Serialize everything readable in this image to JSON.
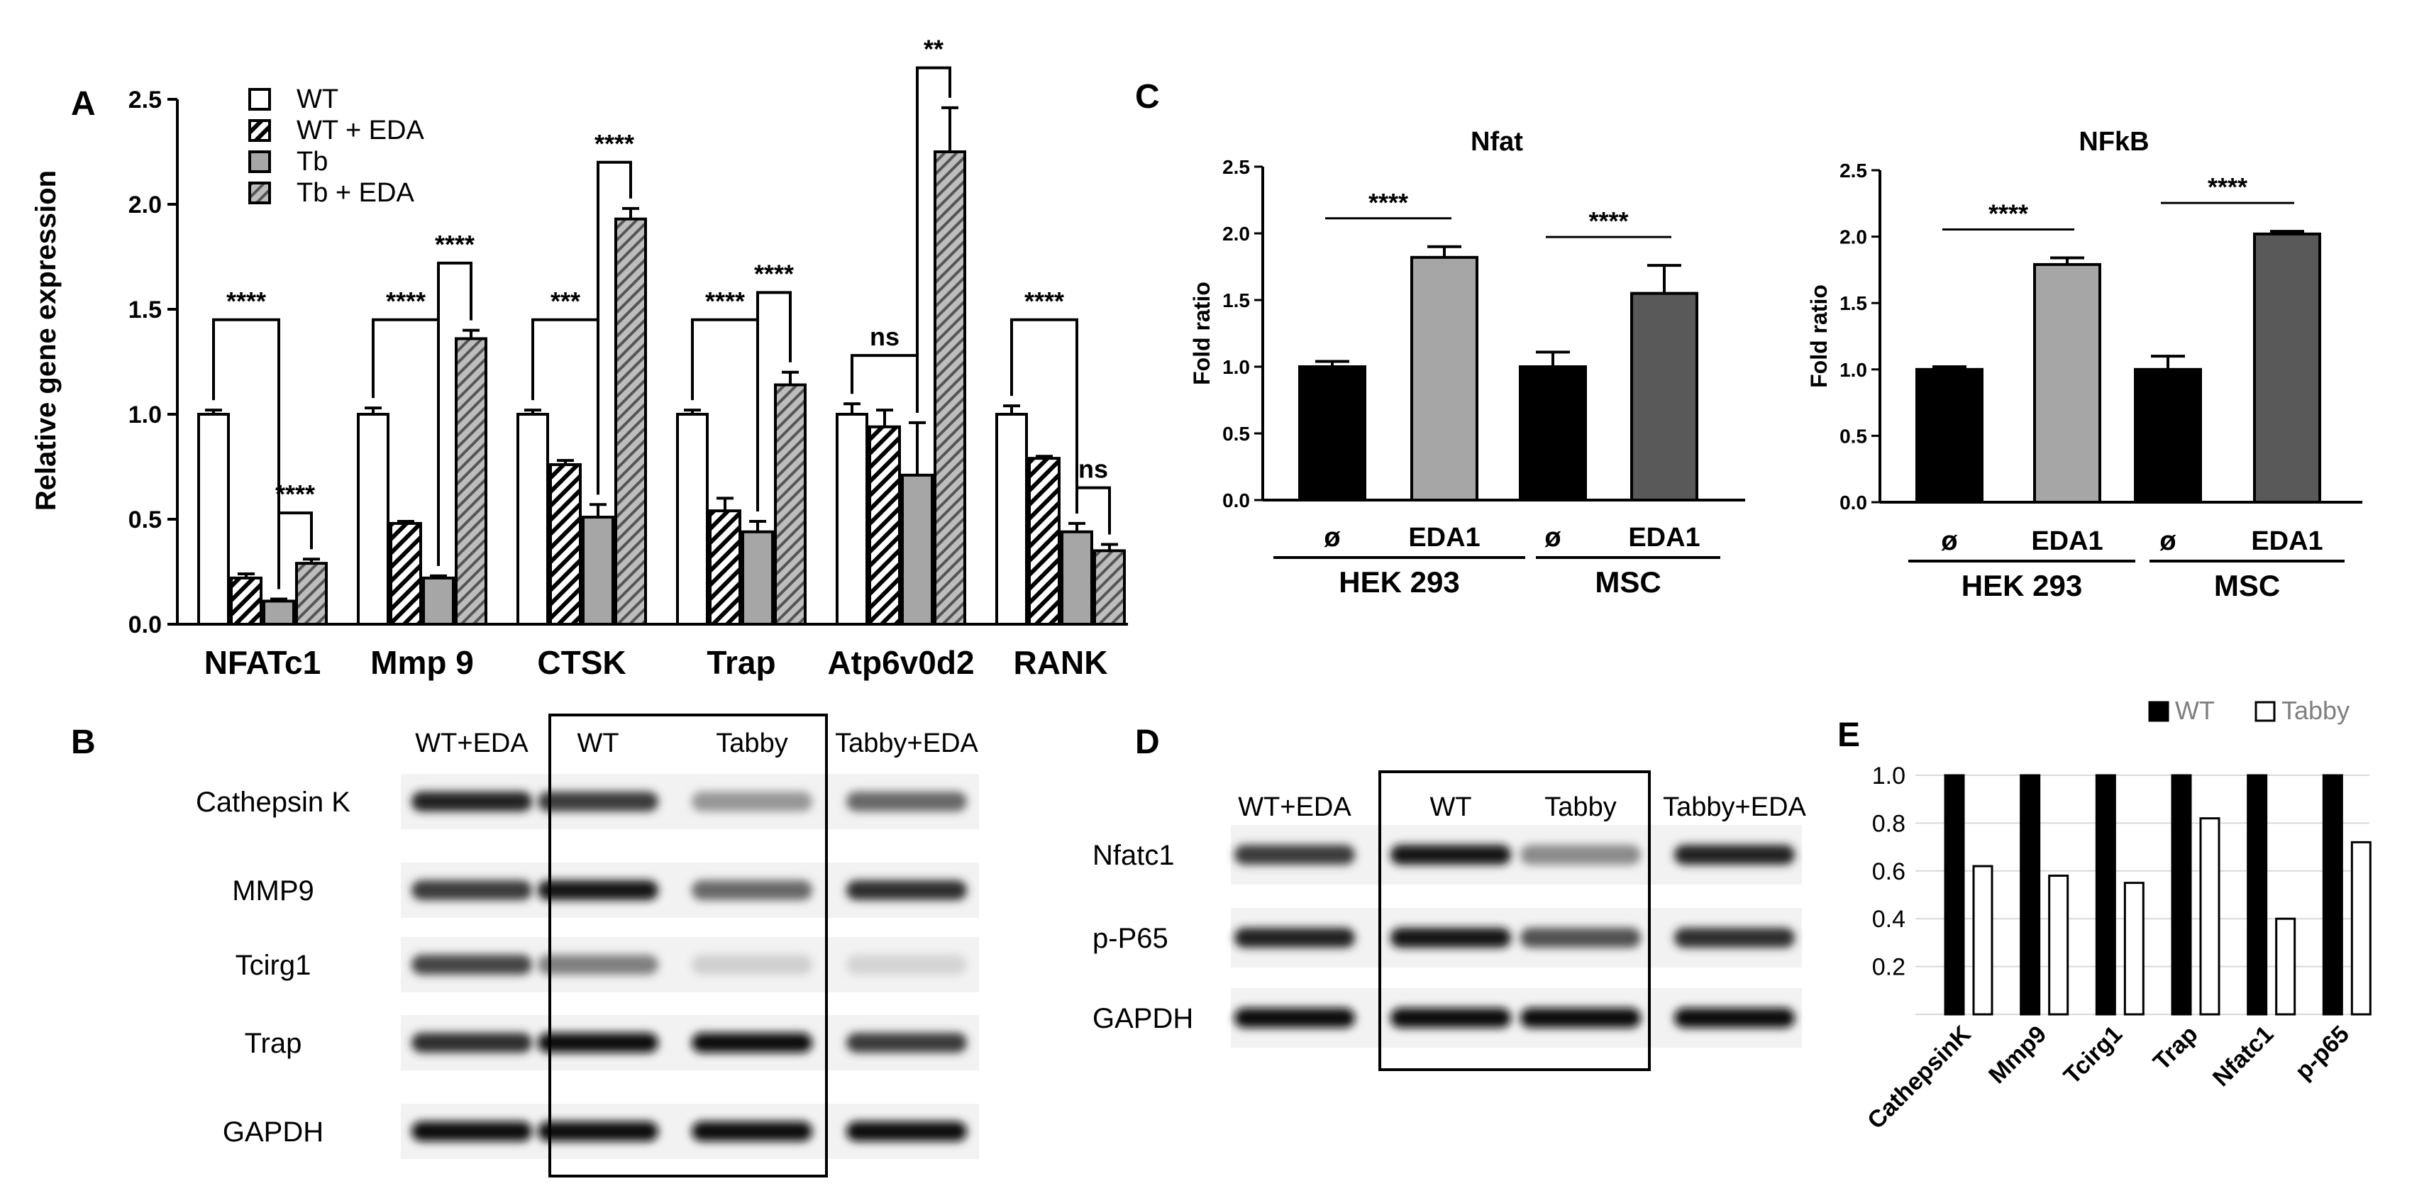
{
  "panelA": {
    "letter": "A",
    "type": "bar",
    "ylabel": "Relative gene expression",
    "ylim": [
      0,
      2.5
    ],
    "yticks": [
      "0.0",
      "0.5",
      "1.0",
      "1.5",
      "2.0",
      "2.5"
    ],
    "categories": [
      "NFATc1",
      "Mmp 9",
      "CTSK",
      "Trap",
      "Atp6v0d2",
      "RANK"
    ],
    "legend": [
      "WT",
      "WT + EDA",
      "Tb",
      "Tb + EDA"
    ],
    "series": [
      {
        "name": "WT",
        "values": [
          1.0,
          1.0,
          1.0,
          1.0,
          1.0,
          1.0
        ],
        "err": [
          0.02,
          0.03,
          0.02,
          0.02,
          0.05,
          0.04
        ]
      },
      {
        "name": "WT + EDA",
        "values": [
          0.22,
          0.48,
          0.76,
          0.54,
          0.94,
          0.79
        ],
        "err": [
          0.02,
          0.01,
          0.02,
          0.06,
          0.08,
          0.01
        ]
      },
      {
        "name": "Tb",
        "values": [
          0.11,
          0.22,
          0.51,
          0.44,
          0.71,
          0.44
        ],
        "err": [
          0.01,
          0.01,
          0.06,
          0.05,
          0.25,
          0.04
        ]
      },
      {
        "name": "Tb + EDA",
        "values": [
          0.29,
          1.36,
          1.93,
          1.14,
          2.25,
          0.35
        ],
        "err": [
          0.02,
          0.04,
          0.05,
          0.06,
          0.21,
          0.03
        ]
      }
    ],
    "significance": [
      {
        "label": "****",
        "group": 0,
        "from": 0,
        "to": 2,
        "y": 1.45
      },
      {
        "label": "****",
        "group": 0,
        "from": 2,
        "to": 3,
        "y": 0.53
      },
      {
        "label": "****",
        "group": 1,
        "from": 0,
        "to": 2,
        "y": 1.45
      },
      {
        "label": "****",
        "group": 1,
        "from": 2,
        "to": 3,
        "y": 1.72
      },
      {
        "label": "***",
        "group": 2,
        "from": 0,
        "to": 2,
        "y": 1.45
      },
      {
        "label": "****",
        "group": 2,
        "from": 2,
        "to": 3,
        "y": 2.2
      },
      {
        "label": "****",
        "group": 3,
        "from": 0,
        "to": 2,
        "y": 1.45
      },
      {
        "label": "****",
        "group": 3,
        "from": 2,
        "to": 3,
        "y": 1.58
      },
      {
        "label": "ns",
        "group": 4,
        "from": 0,
        "to": 2,
        "y": 1.28
      },
      {
        "label": "**",
        "group": 4,
        "from": 2,
        "to": 3,
        "y": 2.65
      },
      {
        "label": "****",
        "group": 5,
        "from": 0,
        "to": 2,
        "y": 1.45
      },
      {
        "label": "ns",
        "group": 5,
        "from": 2,
        "to": 3,
        "y": 0.65
      }
    ]
  },
  "panelB": {
    "letter": "B",
    "lanes": [
      "WT+EDA",
      "WT",
      "Tabby",
      "Tabby+EDA"
    ],
    "rows": [
      {
        "label": "Cathepsin K",
        "bands": [
          0.85,
          0.75,
          0.35,
          0.55
        ]
      },
      {
        "label": "MMP9",
        "bands": [
          0.75,
          0.9,
          0.55,
          0.8
        ]
      },
      {
        "label": "Tcirg1",
        "bands": [
          0.7,
          0.45,
          0.1,
          0.08
        ]
      },
      {
        "label": "Trap",
        "bands": [
          0.8,
          0.95,
          0.95,
          0.75
        ]
      },
      {
        "label": "GAPDH",
        "bands": [
          0.95,
          0.95,
          0.95,
          0.95
        ]
      }
    ]
  },
  "panelC": {
    "letter": "C",
    "charts": [
      {
        "type": "bar",
        "title": "Nfat",
        "ylabel": "Fold ratio",
        "ylim": [
          0,
          2.5
        ],
        "yticks": [
          "0.0",
          "0.5",
          "1.0",
          "1.5",
          "2.0",
          "2.5"
        ],
        "categories": [
          "ø",
          "EDA1",
          "ø",
          "EDA1"
        ],
        "values": [
          1.0,
          1.82,
          1.0,
          1.55
        ],
        "err": [
          0.04,
          0.08,
          0.11,
          0.21
        ],
        "colors": [
          "#000000",
          "#a6a6a6",
          "#000000",
          "#595959"
        ],
        "groups": [
          "HEK 293",
          "MSC"
        ],
        "significance": [
          "****",
          "****"
        ]
      },
      {
        "type": "bar",
        "title": "NFkB",
        "ylabel": "Fold ratio",
        "ylim": [
          0,
          2.5
        ],
        "yticks": [
          "0.0",
          "0.5",
          "1.0",
          "1.5",
          "2.0",
          "2.5"
        ],
        "categories": [
          "ø",
          "EDA1",
          "ø",
          "EDA1"
        ],
        "values": [
          1.0,
          1.79,
          1.0,
          2.02
        ],
        "err": [
          0.02,
          0.05,
          0.1,
          0.02
        ],
        "colors": [
          "#000000",
          "#a6a6a6",
          "#000000",
          "#595959"
        ],
        "groups": [
          "HEK 293",
          "MSC"
        ],
        "significance": [
          "****",
          "****"
        ]
      }
    ]
  },
  "panelD": {
    "letter": "D",
    "lanes": [
      "WT+EDA",
      "WT",
      "Tabby",
      "Tabby+EDA"
    ],
    "rows": [
      {
        "label": "Nfatc1",
        "bands": [
          0.75,
          0.9,
          0.4,
          0.85
        ]
      },
      {
        "label": "p-P65",
        "bands": [
          0.85,
          0.9,
          0.65,
          0.8
        ]
      },
      {
        "label": "GAPDH",
        "bands": [
          0.95,
          0.95,
          0.95,
          0.95
        ]
      }
    ]
  },
  "panelE": {
    "letter": "E",
    "type": "bar",
    "ylim": [
      0,
      1.0
    ],
    "yticks": [
      "0.2",
      "0.4",
      "0.6",
      "0.8",
      "1.0"
    ],
    "categories": [
      "CathepsinK",
      "Mmp9",
      "Tcirg1",
      "Trap",
      "Nfatc1",
      "p-p65"
    ],
    "legend": [
      "WT",
      "Tabby"
    ],
    "series": [
      {
        "name": "WT",
        "values": [
          1.0,
          1.0,
          1.0,
          1.0,
          1.0,
          1.0
        ]
      },
      {
        "name": "Tabby",
        "values": [
          0.62,
          0.58,
          0.55,
          0.82,
          0.4,
          0.72
        ]
      }
    ]
  }
}
